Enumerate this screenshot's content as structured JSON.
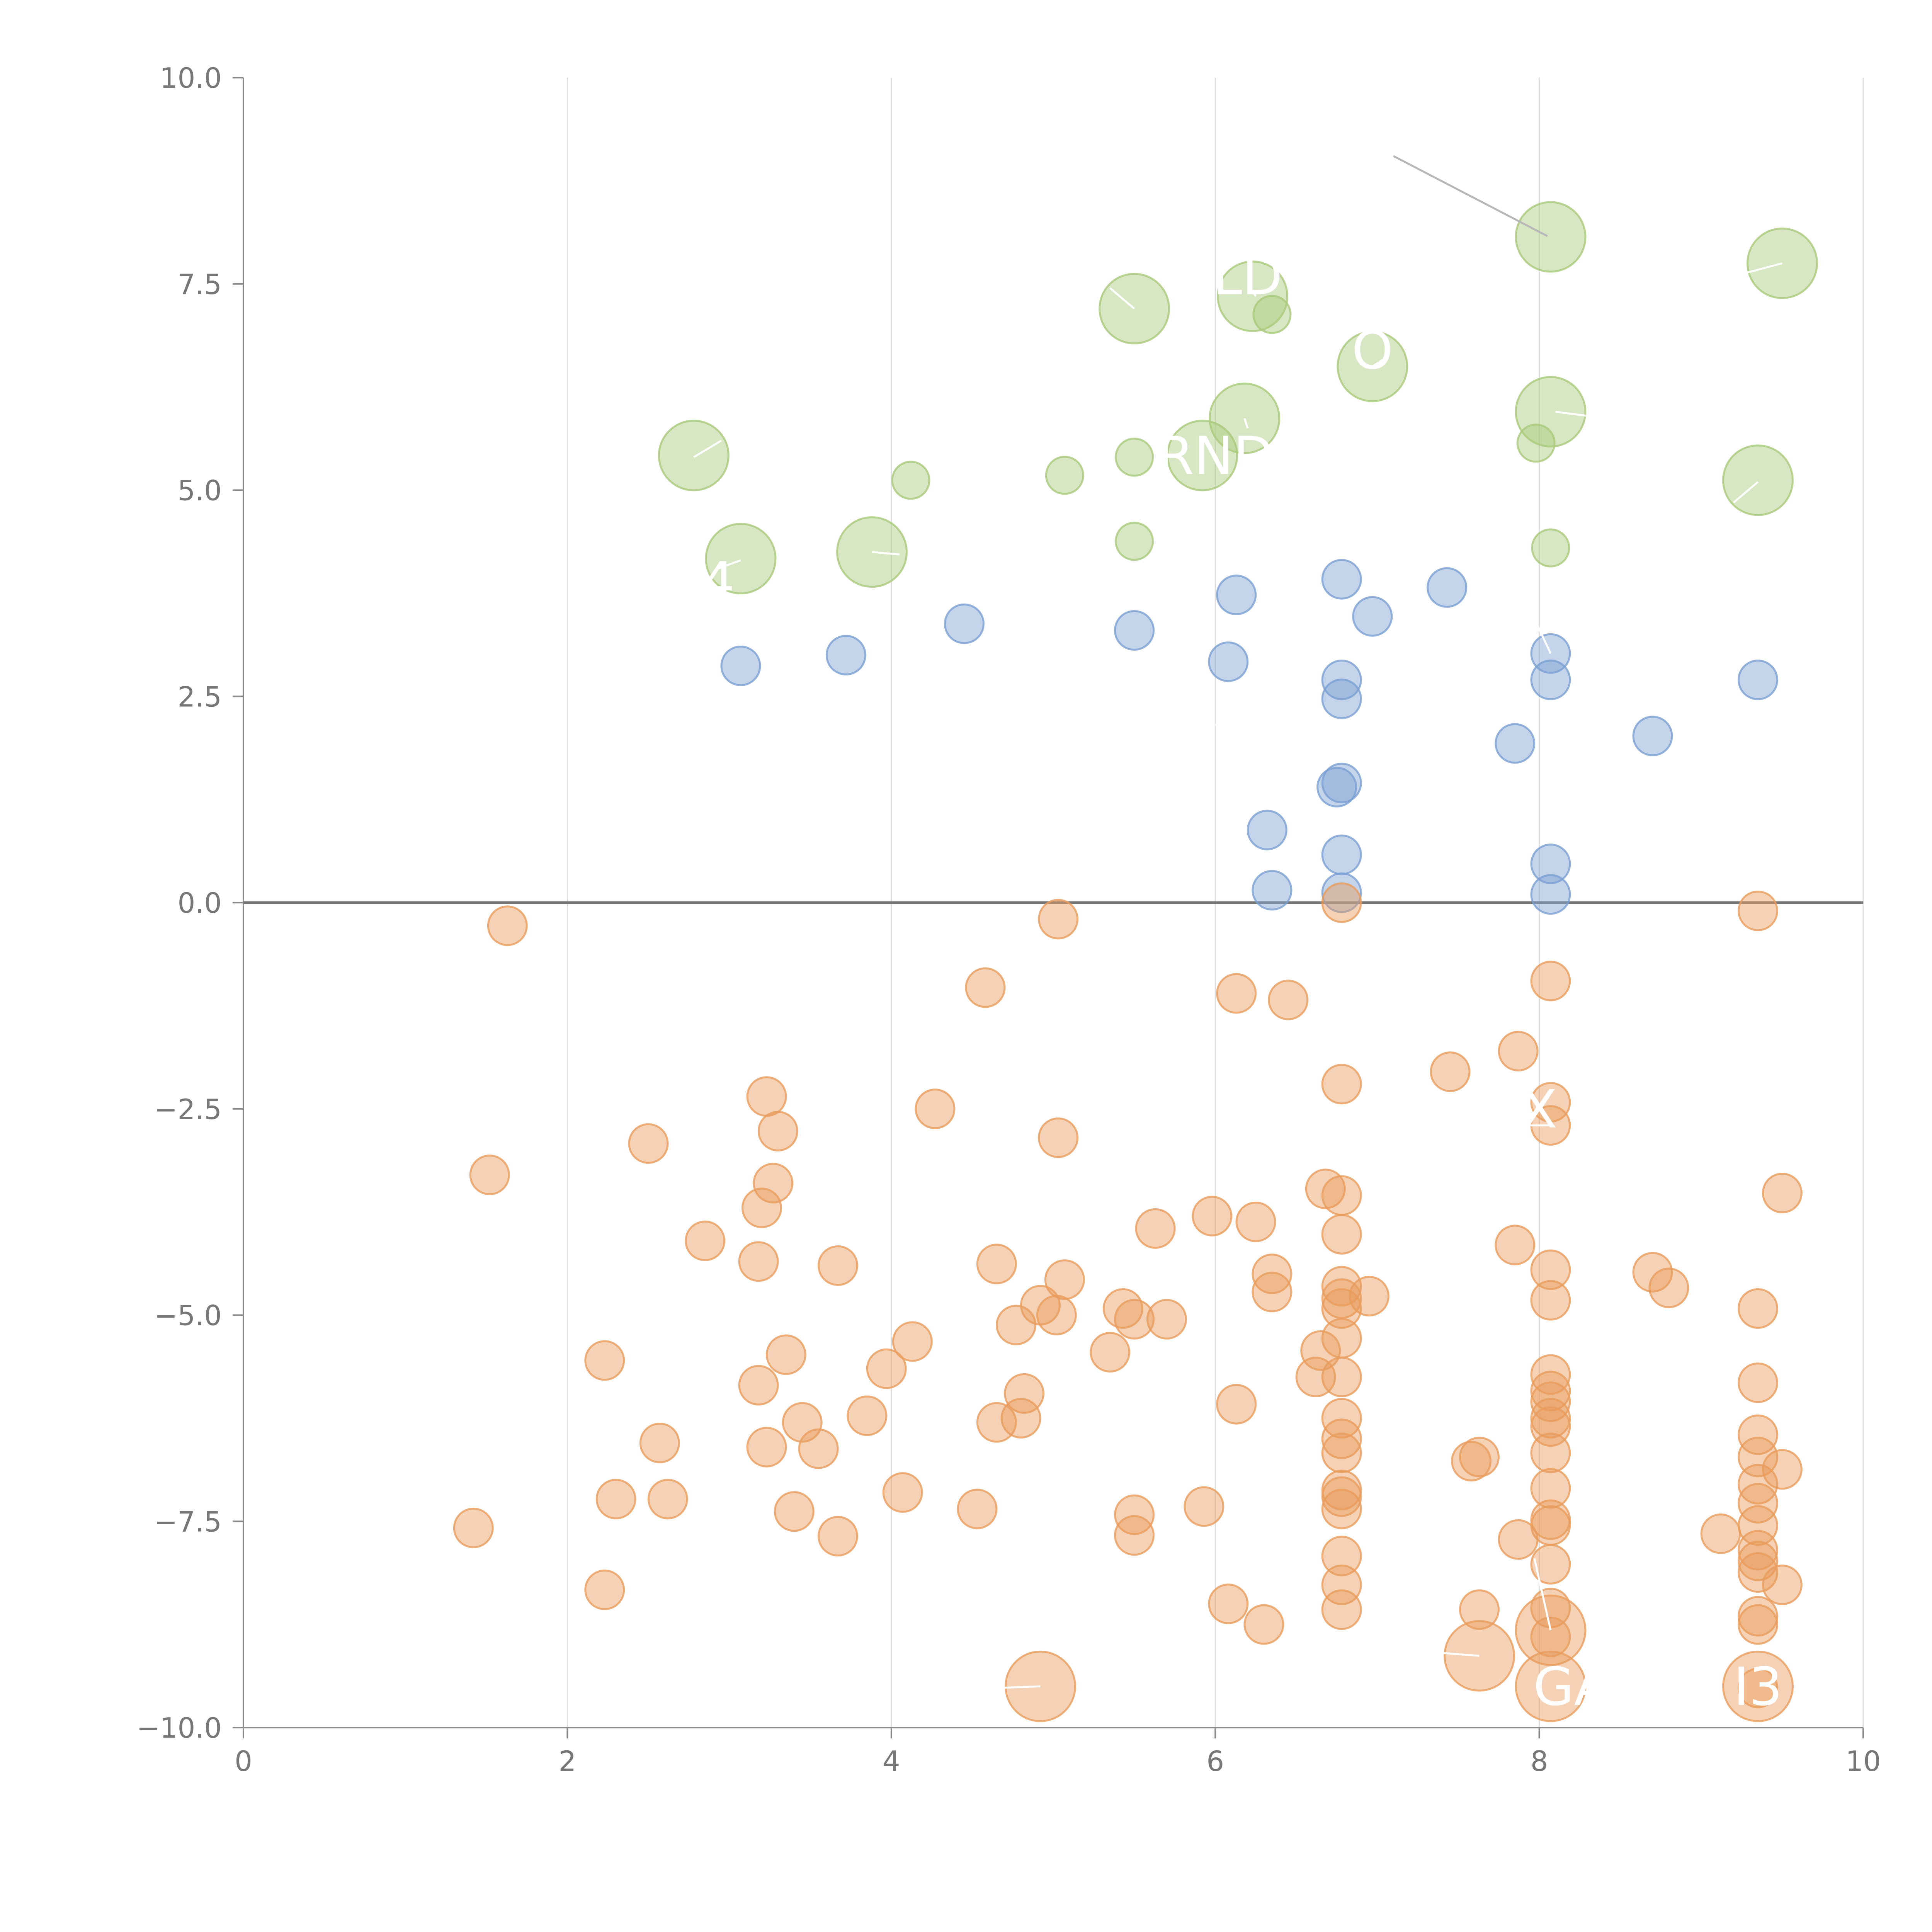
{
  "chart_data": {
    "type": "scatter",
    "title": "",
    "xlabel": "",
    "ylabel": "",
    "xlim": [
      0,
      10
    ],
    "ylim": [
      -10,
      10
    ],
    "x_ticks": [
      0,
      2,
      4,
      6,
      8,
      10
    ],
    "x_tick_labels": [
      "0",
      "2",
      "4",
      "6",
      "8",
      "10"
    ],
    "y_ticks": [
      10,
      7.5,
      5,
      2.5,
      0,
      -2.5,
      -5,
      -7.5,
      -10
    ],
    "y_tick_labels": [
      "10.0",
      "7.5",
      "5.0",
      "2.5",
      "0.0",
      "−2.5",
      "−5.0",
      "−7.5",
      "−10.0"
    ],
    "vertical_grid": true,
    "zero_line": true,
    "legend": "none",
    "series": [
      {
        "name": "green",
        "color": "#a9c97a",
        "points": [
          {
            "x": 8.07,
            "y": 8.07,
            "size": "large"
          },
          {
            "x": 9.5,
            "y": 7.75,
            "size": "large"
          },
          {
            "x": 5.5,
            "y": 7.2,
            "size": "large"
          },
          {
            "x": 6.23,
            "y": 7.35,
            "size": "large"
          },
          {
            "x": 6.35,
            "y": 7.13,
            "size": "small"
          },
          {
            "x": 6.97,
            "y": 6.5,
            "size": "large"
          },
          {
            "x": 8.07,
            "y": 5.95,
            "size": "large"
          },
          {
            "x": 6.18,
            "y": 5.87,
            "size": "large"
          },
          {
            "x": 7.98,
            "y": 5.57,
            "size": "small"
          },
          {
            "x": 5.92,
            "y": 5.42,
            "size": "large"
          },
          {
            "x": 2.78,
            "y": 5.42,
            "size": "large"
          },
          {
            "x": 5.5,
            "y": 5.4,
            "size": "small"
          },
          {
            "x": 4.12,
            "y": 5.12,
            "size": "small"
          },
          {
            "x": 5.07,
            "y": 5.18,
            "size": "small"
          },
          {
            "x": 9.35,
            "y": 5.12,
            "size": "large"
          },
          {
            "x": 3.88,
            "y": 4.25,
            "size": "large"
          },
          {
            "x": 3.07,
            "y": 4.17,
            "size": "large"
          },
          {
            "x": 5.5,
            "y": 4.38,
            "size": "small"
          },
          {
            "x": 8.07,
            "y": 4.3,
            "size": "small"
          }
        ]
      },
      {
        "name": "blue",
        "color": "#7b9fd2",
        "points": [
          {
            "x": 6.78,
            "y": 3.92
          },
          {
            "x": 7.43,
            "y": 3.82
          },
          {
            "x": 6.13,
            "y": 3.73
          },
          {
            "x": 6.97,
            "y": 3.47
          },
          {
            "x": 4.45,
            "y": 3.38
          },
          {
            "x": 5.5,
            "y": 3.3
          },
          {
            "x": 8.07,
            "y": 3.02
          },
          {
            "x": 3.72,
            "y": 3.0
          },
          {
            "x": 6.08,
            "y": 2.92
          },
          {
            "x": 3.07,
            "y": 2.87
          },
          {
            "x": 6.78,
            "y": 2.7
          },
          {
            "x": 8.07,
            "y": 2.7
          },
          {
            "x": 9.35,
            "y": 2.7
          },
          {
            "x": 6.78,
            "y": 2.47
          },
          {
            "x": 8.7,
            "y": 2.02
          },
          {
            "x": 7.85,
            "y": 1.93
          },
          {
            "x": 6.78,
            "y": 1.45
          },
          {
            "x": 6.75,
            "y": 1.4
          },
          {
            "x": 6.32,
            "y": 0.88
          },
          {
            "x": 6.78,
            "y": 0.58
          },
          {
            "x": 8.07,
            "y": 0.47
          },
          {
            "x": 6.35,
            "y": 0.15
          },
          {
            "x": 6.78,
            "y": 0.12
          },
          {
            "x": 8.07,
            "y": 0.1
          }
        ]
      },
      {
        "name": "orange",
        "color": "#e89c5c",
        "points": [
          {
            "x": 6.78,
            "y": 0.0
          },
          {
            "x": 9.35,
            "y": -0.1
          },
          {
            "x": 5.03,
            "y": -0.2
          },
          {
            "x": 1.63,
            "y": -0.28
          },
          {
            "x": 8.07,
            "y": -0.95
          },
          {
            "x": 4.58,
            "y": -1.03
          },
          {
            "x": 6.13,
            "y": -1.1
          },
          {
            "x": 6.45,
            "y": -1.18
          },
          {
            "x": 7.87,
            "y": -1.8
          },
          {
            "x": 7.45,
            "y": -2.05
          },
          {
            "x": 6.78,
            "y": -2.2
          },
          {
            "x": 3.23,
            "y": -2.35
          },
          {
            "x": 8.07,
            "y": -2.42
          },
          {
            "x": 4.27,
            "y": -2.5
          },
          {
            "x": 8.07,
            "y": -2.7
          },
          {
            "x": 3.3,
            "y": -2.77
          },
          {
            "x": 5.03,
            "y": -2.85
          },
          {
            "x": 2.5,
            "y": -2.92
          },
          {
            "x": 1.52,
            "y": -3.3
          },
          {
            "x": 3.27,
            "y": -3.4
          },
          {
            "x": 6.68,
            "y": -3.47
          },
          {
            "x": 9.5,
            "y": -3.52
          },
          {
            "x": 6.78,
            "y": -3.55
          },
          {
            "x": 3.2,
            "y": -3.7
          },
          {
            "x": 5.98,
            "y": -3.8
          },
          {
            "x": 6.25,
            "y": -3.87
          },
          {
            "x": 5.63,
            "y": -3.95
          },
          {
            "x": 6.78,
            "y": -4.02
          },
          {
            "x": 2.85,
            "y": -4.1
          },
          {
            "x": 7.85,
            "y": -4.15
          },
          {
            "x": 3.18,
            "y": -4.35
          },
          {
            "x": 4.65,
            "y": -4.38
          },
          {
            "x": 3.67,
            "y": -4.4
          },
          {
            "x": 8.07,
            "y": -4.45
          },
          {
            "x": 8.7,
            "y": -4.48
          },
          {
            "x": 6.35,
            "y": -4.5
          },
          {
            "x": 5.07,
            "y": -4.57
          },
          {
            "x": 6.78,
            "y": -4.65
          },
          {
            "x": 8.8,
            "y": -4.67
          },
          {
            "x": 6.35,
            "y": -4.72
          },
          {
            "x": 6.95,
            "y": -4.77
          },
          {
            "x": 6.78,
            "y": -4.8
          },
          {
            "x": 8.07,
            "y": -4.82
          },
          {
            "x": 4.92,
            "y": -4.88
          },
          {
            "x": 6.78,
            "y": -4.92
          },
          {
            "x": 5.43,
            "y": -4.92
          },
          {
            "x": 9.35,
            "y": -4.92
          },
          {
            "x": 5.02,
            "y": -5.0
          },
          {
            "x": 5.7,
            "y": -5.05
          },
          {
            "x": 5.5,
            "y": -5.05
          },
          {
            "x": 4.77,
            "y": -5.12
          },
          {
            "x": 6.78,
            "y": -5.28
          },
          {
            "x": 4.13,
            "y": -5.32
          },
          {
            "x": 6.65,
            "y": -5.43
          },
          {
            "x": 5.35,
            "y": -5.45
          },
          {
            "x": 3.35,
            "y": -5.48
          },
          {
            "x": 2.23,
            "y": -5.55
          },
          {
            "x": 3.97,
            "y": -5.65
          },
          {
            "x": 8.07,
            "y": -5.72
          },
          {
            "x": 6.62,
            "y": -5.75
          },
          {
            "x": 6.78,
            "y": -5.75
          },
          {
            "x": 9.35,
            "y": -5.82
          },
          {
            "x": 3.18,
            "y": -5.85
          },
          {
            "x": 8.07,
            "y": -5.92
          },
          {
            "x": 4.82,
            "y": -5.95
          },
          {
            "x": 8.07,
            "y": -6.05
          },
          {
            "x": 6.13,
            "y": -6.08
          },
          {
            "x": 8.07,
            "y": -6.25
          },
          {
            "x": 3.85,
            "y": -6.22
          },
          {
            "x": 4.8,
            "y": -6.25
          },
          {
            "x": 6.78,
            "y": -6.25
          },
          {
            "x": 4.65,
            "y": -6.3
          },
          {
            "x": 3.45,
            "y": -6.3
          },
          {
            "x": 8.07,
            "y": -6.35
          },
          {
            "x": 9.35,
            "y": -6.45
          },
          {
            "x": 6.78,
            "y": -6.5
          },
          {
            "x": 2.57,
            "y": -6.55
          },
          {
            "x": 3.23,
            "y": -6.6
          },
          {
            "x": 3.55,
            "y": -6.62
          },
          {
            "x": 6.78,
            "y": -6.67
          },
          {
            "x": 8.07,
            "y": -6.67
          },
          {
            "x": 7.63,
            "y": -6.72
          },
          {
            "x": 9.35,
            "y": -6.72
          },
          {
            "x": 7.58,
            "y": -6.77
          },
          {
            "x": 9.5,
            "y": -6.87
          },
          {
            "x": 9.35,
            "y": -7.05
          },
          {
            "x": 8.07,
            "y": -7.1
          },
          {
            "x": 6.78,
            "y": -7.12
          },
          {
            "x": 4.07,
            "y": -7.15
          },
          {
            "x": 6.78,
            "y": -7.2
          },
          {
            "x": 2.3,
            "y": -7.23
          },
          {
            "x": 2.62,
            "y": -7.23
          },
          {
            "x": 9.35,
            "y": -7.28
          },
          {
            "x": 5.93,
            "y": -7.32
          },
          {
            "x": 4.53,
            "y": -7.35
          },
          {
            "x": 6.78,
            "y": -7.35
          },
          {
            "x": 3.4,
            "y": -7.38
          },
          {
            "x": 5.5,
            "y": -7.42
          },
          {
            "x": 8.07,
            "y": -7.48
          },
          {
            "x": 9.35,
            "y": -7.55
          },
          {
            "x": 8.07,
            "y": -7.55
          },
          {
            "x": 1.42,
            "y": -7.58
          },
          {
            "x": 9.12,
            "y": -7.65
          },
          {
            "x": 5.5,
            "y": -7.67
          },
          {
            "x": 3.67,
            "y": -7.68
          },
          {
            "x": 7.87,
            "y": -7.72
          },
          {
            "x": 9.35,
            "y": -7.85
          },
          {
            "x": 6.78,
            "y": -7.92
          },
          {
            "x": 9.35,
            "y": -7.98
          },
          {
            "x": 8.07,
            "y": -8.02
          },
          {
            "x": 9.35,
            "y": -8.12
          },
          {
            "x": 6.78,
            "y": -8.27
          },
          {
            "x": 9.5,
            "y": -8.27
          },
          {
            "x": 2.23,
            "y": -8.33
          },
          {
            "x": 6.08,
            "y": -8.5
          },
          {
            "x": 8.07,
            "y": -8.55
          },
          {
            "x": 7.63,
            "y": -8.57
          },
          {
            "x": 6.78,
            "y": -8.57
          },
          {
            "x": 9.35,
            "y": -8.65
          },
          {
            "x": 6.3,
            "y": -8.75
          },
          {
            "x": 9.35,
            "y": -8.75
          },
          {
            "x": 8.07,
            "y": -8.82,
            "size": "large"
          },
          {
            "x": 8.07,
            "y": -8.9
          },
          {
            "x": 7.63,
            "y": -9.13,
            "size": "large"
          },
          {
            "x": 4.92,
            "y": -9.5,
            "size": "large"
          },
          {
            "x": 8.07,
            "y": -9.5,
            "size": "large"
          },
          {
            "x": 9.35,
            "y": -9.5,
            "size": "large"
          },
          {
            "x": 9.35,
            "y": -9.52
          }
        ]
      }
    ],
    "annotations": [
      {
        "text": "RNDI",
        "x": 6.05,
        "y": 5.42,
        "anchor": "middle"
      },
      {
        "text": "GA",
        "x": 8.2,
        "y": -9.5,
        "anchor": "middle"
      },
      {
        "text": "I3",
        "x": 9.35,
        "y": -9.5,
        "anchor": "middle"
      },
      {
        "text": "X",
        "x": 8.0,
        "y": -2.5,
        "anchor": "middle"
      },
      {
        "text": "4",
        "x": 2.93,
        "y": 3.9,
        "anchor": "middle"
      },
      {
        "text": "LD",
        "x": 6.2,
        "y": 7.6,
        "anchor": "middle"
      },
      {
        "text": "O",
        "x": 6.97,
        "y": 6.7,
        "anchor": "middle"
      }
    ],
    "leader_lines": [
      {
        "from": [
          7.1,
          9.05
        ],
        "to": [
          8.05,
          8.08
        ],
        "color": "#b7b7b7"
      },
      {
        "from": [
          8.1,
          5.95
        ],
        "to": [
          8.3,
          5.9
        ],
        "color": "#ffffff"
      },
      {
        "from": [
          9.35,
          5.1
        ],
        "to": [
          9.2,
          4.85
        ],
        "color": "#ffffff"
      },
      {
        "from": [
          9.5,
          7.75
        ],
        "to": [
          9.25,
          7.62
        ],
        "color": "#ffffff"
      },
      {
        "from": [
          5.5,
          7.2
        ],
        "to": [
          5.35,
          7.45
        ],
        "color": "#ffffff"
      },
      {
        "from": [
          6.97,
          6.5
        ],
        "to": [
          7.05,
          6.6
        ],
        "color": "#ffffff"
      },
      {
        "from": [
          2.78,
          5.4
        ],
        "to": [
          2.95,
          5.6
        ],
        "color": "#ffffff"
      },
      {
        "from": [
          3.88,
          4.25
        ],
        "to": [
          4.05,
          4.22
        ],
        "color": "#ffffff"
      },
      {
        "from": [
          3.07,
          4.15
        ],
        "to": [
          2.93,
          4.05
        ],
        "color": "#ffffff"
      },
      {
        "from": [
          6.18,
          5.87
        ],
        "to": [
          6.2,
          5.75
        ],
        "color": "#ffffff"
      },
      {
        "from": [
          6.25,
          7.35
        ],
        "to": [
          6.2,
          7.5
        ],
        "color": "#ffffff"
      },
      {
        "from": [
          7.63,
          -9.13
        ],
        "to": [
          7.1,
          -9.05
        ],
        "color": "#ffffff"
      },
      {
        "from": [
          4.92,
          -9.5
        ],
        "to": [
          4.65,
          -9.52
        ],
        "color": "#ffffff"
      },
      {
        "from": [
          8.07,
          -8.82
        ],
        "to": [
          7.97,
          -7.95
        ],
        "color": "#ffffff"
      },
      {
        "from": [
          8.07,
          -2.7
        ],
        "to": [
          7.92,
          -2.7
        ],
        "color": "#ffffff"
      },
      {
        "from": [
          8.07,
          3.02
        ],
        "to": [
          7.98,
          3.4
        ],
        "color": "#ffffff"
      },
      {
        "from": [
          6.18,
          2.3
        ],
        "to": [
          6.0,
          2.15
        ],
        "color": "#ffffff"
      }
    ]
  }
}
